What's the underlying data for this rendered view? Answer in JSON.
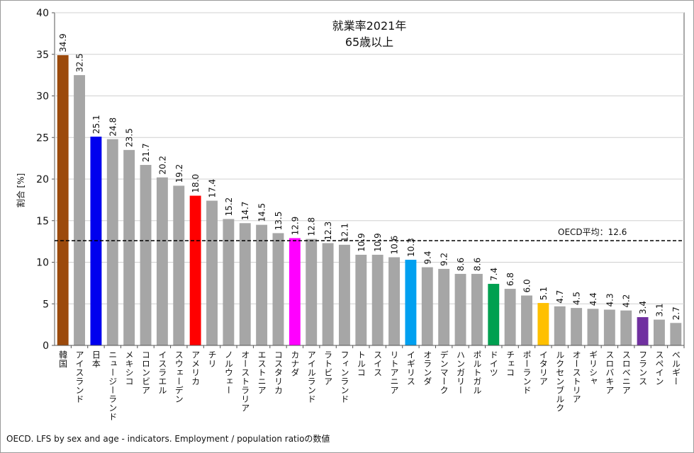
{
  "chart_data": {
    "type": "bar",
    "title": "就業率2021年",
    "subtitle": "65歳以上",
    "ylabel": "割合 [%]",
    "xlabel": "",
    "ylim": [
      0,
      40
    ],
    "yticks": [
      0,
      5,
      10,
      15,
      20,
      25,
      30,
      35,
      40
    ],
    "grid": true,
    "categories": [
      "韓国",
      "アイスランド",
      "日本",
      "ニュージーランド",
      "メキシコ",
      "コロンビア",
      "イスラエル",
      "スウェーデン",
      "アメリカ",
      "チリ",
      "ノルウェー",
      "オーストラリア",
      "エストニア",
      "コスタリカ",
      "カナダ",
      "アイルランド",
      "ラトビア",
      "フィンランド",
      "トルコ",
      "スイス",
      "リトアニア",
      "イギリス",
      "オランダ",
      "デンマーク",
      "ハンガリー",
      "ポルトガル",
      "ドイツ",
      "チェコ",
      "ポーランド",
      "イタリア",
      "ルクセンブルク",
      "オーストリア",
      "ギリシャ",
      "スロバキア",
      "スロベニア",
      "フランス",
      "スペイン",
      "ベルギー"
    ],
    "values": [
      34.9,
      32.5,
      25.1,
      24.8,
      23.5,
      21.7,
      20.2,
      19.2,
      18.0,
      17.4,
      15.2,
      14.7,
      14.5,
      13.5,
      12.9,
      12.8,
      12.3,
      12.1,
      10.9,
      10.9,
      10.6,
      10.3,
      9.4,
      9.2,
      8.6,
      8.6,
      7.4,
      6.8,
      6.0,
      5.1,
      4.7,
      4.5,
      4.4,
      4.3,
      4.2,
      3.4,
      3.1,
      2.7
    ],
    "value_labels": [
      "34.9",
      "32.5",
      "25.1",
      "24.8",
      "23.5",
      "21.7",
      "20.2",
      "19.2",
      "18.0",
      "17.4",
      "15.2",
      "14.7",
      "14.5",
      "13.5",
      "12.9",
      "12.8",
      "12.3",
      "12.1",
      "10.9",
      "10.9",
      "10.6",
      "10.3",
      "9.4",
      "9.2",
      "8.6",
      "8.6",
      "7.4",
      "6.8",
      "6.0",
      "5.1",
      "4.7",
      "4.5",
      "4.4",
      "4.3",
      "4.2",
      "3.4",
      "3.1",
      "2.7"
    ],
    "colors": [
      "#9c4a0c",
      "#a6a6a6",
      "#0000ee",
      "#a6a6a6",
      "#a6a6a6",
      "#a6a6a6",
      "#a6a6a6",
      "#a6a6a6",
      "#ff0000",
      "#a6a6a6",
      "#a6a6a6",
      "#a6a6a6",
      "#a6a6a6",
      "#a6a6a6",
      "#ff00ff",
      "#a6a6a6",
      "#a6a6a6",
      "#a6a6a6",
      "#a6a6a6",
      "#a6a6a6",
      "#a6a6a6",
      "#00a0f0",
      "#a6a6a6",
      "#a6a6a6",
      "#a6a6a6",
      "#a6a6a6",
      "#00a050",
      "#a6a6a6",
      "#a6a6a6",
      "#ffc000",
      "#a6a6a6",
      "#a6a6a6",
      "#a6a6a6",
      "#a6a6a6",
      "#a6a6a6",
      "#7030a0",
      "#a6a6a6",
      "#a6a6a6"
    ],
    "reference_line": {
      "value": 12.6,
      "label": "OECD平均：12.6",
      "style": "dashed"
    },
    "source": "OECD. LFS by sex and age - indicators. Employment / population ratioの数値"
  }
}
